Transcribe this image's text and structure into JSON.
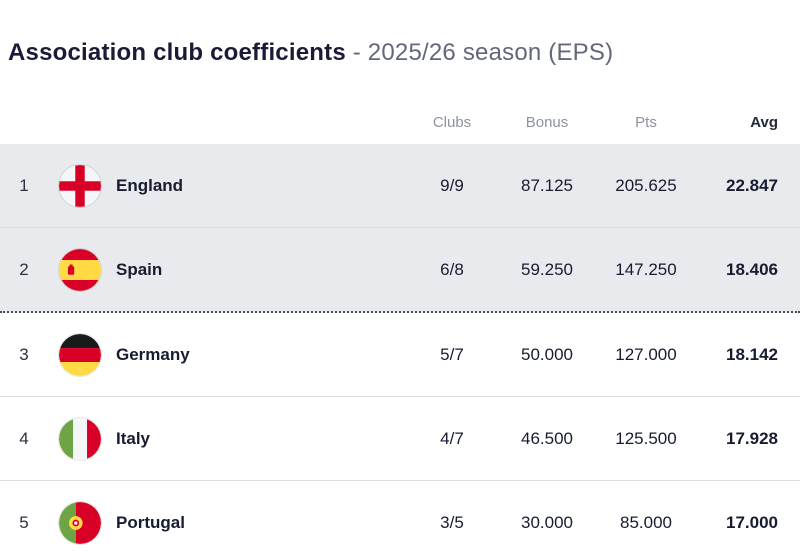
{
  "title": {
    "main": "Association club coefficients",
    "sub": " - 2025/26 season (EPS)"
  },
  "colors": {
    "highlight_row_bg": "#e8eaed",
    "title_text": "#1b1b38",
    "subtitle_text": "#62687a",
    "header_text": "#8d929e",
    "body_text": "#171c30",
    "dotted_separator": "#474d59",
    "flag_red": "#d80027",
    "flag_yellow": "#ffda44",
    "flag_green": "#6da544"
  },
  "table": {
    "headers": {
      "clubs": "Clubs",
      "bonus": "Bonus",
      "pts": "Pts",
      "avg": "Avg"
    },
    "rows": [
      {
        "rank": "1",
        "country": "England",
        "flag": "england",
        "flag_icon": "england-flag-icon",
        "clubs": "9/9",
        "bonus": "87.125",
        "pts": "205.625",
        "avg": "22.847",
        "highlight": true
      },
      {
        "rank": "2",
        "country": "Spain",
        "flag": "spain",
        "flag_icon": "spain-flag-icon",
        "clubs": "6/8",
        "bonus": "59.250",
        "pts": "147.250",
        "avg": "18.406",
        "highlight": true
      },
      {
        "rank": "3",
        "country": "Germany",
        "flag": "germany",
        "flag_icon": "germany-flag-icon",
        "clubs": "5/7",
        "bonus": "50.000",
        "pts": "127.000",
        "avg": "18.142",
        "highlight": false
      },
      {
        "rank": "4",
        "country": "Italy",
        "flag": "italy",
        "flag_icon": "italy-flag-icon",
        "clubs": "4/7",
        "bonus": "46.500",
        "pts": "125.500",
        "avg": "17.928",
        "highlight": false
      },
      {
        "rank": "5",
        "country": "Portugal",
        "flag": "portugal",
        "flag_icon": "portugal-flag-icon",
        "clubs": "3/5",
        "bonus": "30.000",
        "pts": "85.000",
        "avg": "17.000",
        "highlight": false
      }
    ]
  }
}
